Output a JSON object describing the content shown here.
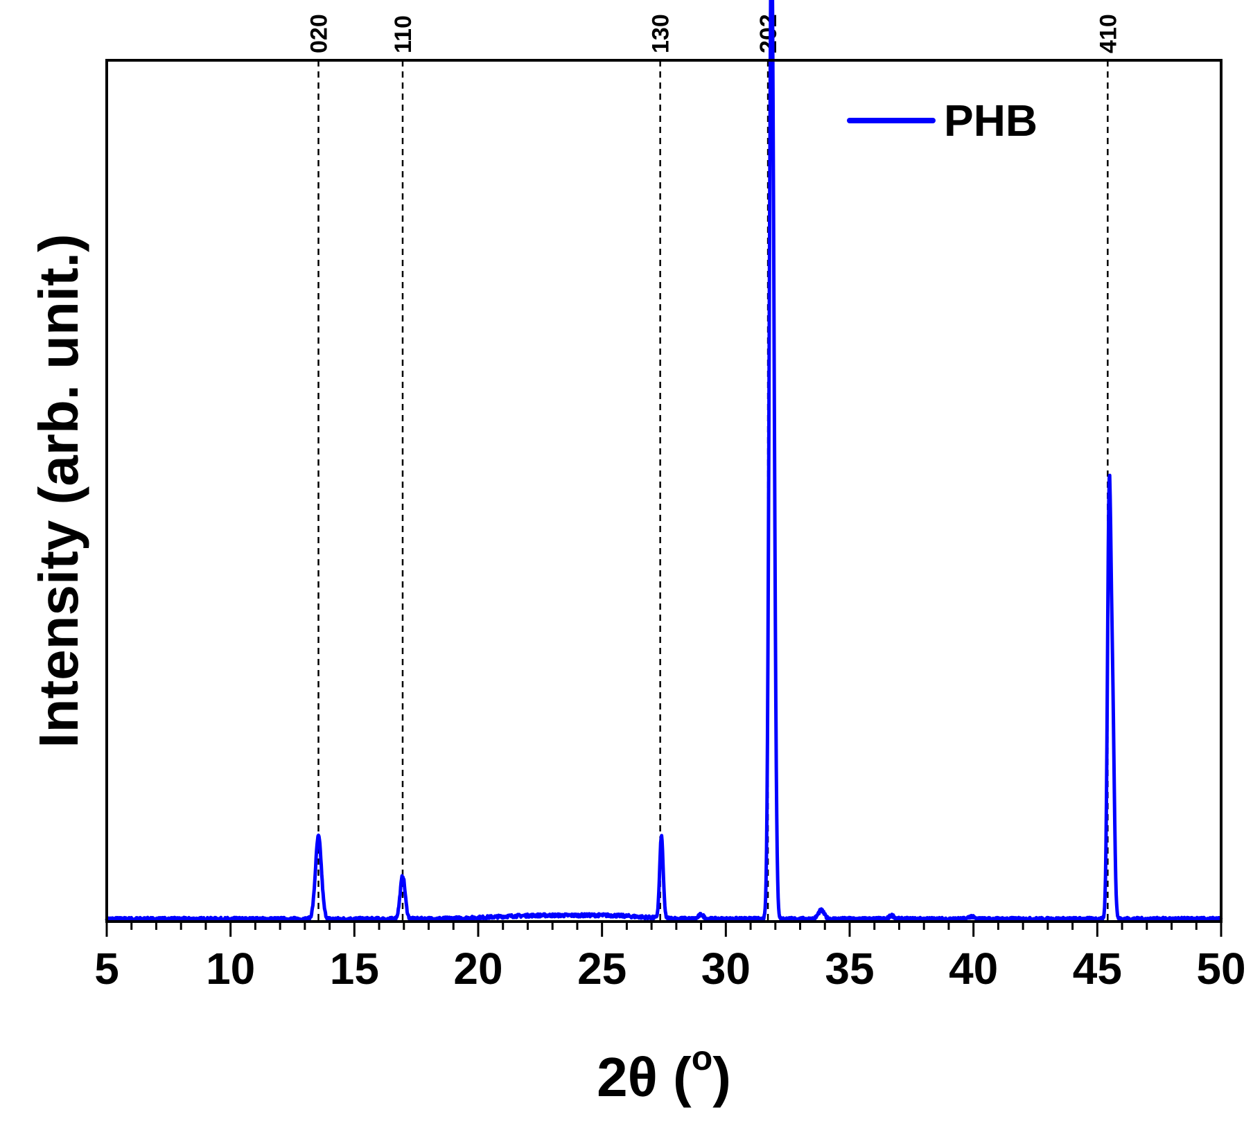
{
  "chart_data": {
    "type": "line",
    "xlabel_main": "2θ (",
    "xlabel_sup": "o",
    "xlabel_close": ")",
    "ylabel": "Intensity  (arb. unit.)",
    "xlim": [
      5,
      50
    ],
    "ylim": [
      0,
      100
    ],
    "x_ticks": [
      5,
      10,
      15,
      20,
      25,
      30,
      35,
      40,
      45,
      50
    ],
    "x_minor_step": 1,
    "y_ticks_shown": false,
    "grid": false,
    "legend": {
      "placement": "top-right",
      "entries": [
        "PHB"
      ]
    },
    "series": [
      {
        "name": "PHB",
        "color": "#0000ff",
        "baseline": 0.3,
        "peaks": [
          {
            "x": 13.55,
            "height": 9.6,
            "width": 0.12
          },
          {
            "x": 16.95,
            "height": 5.0,
            "width": 0.1
          },
          {
            "x": 27.4,
            "height": 9.5,
            "width": 0.07
          },
          {
            "x": 29.0,
            "height": 0.5,
            "width": 0.1
          },
          {
            "x": 31.82,
            "height": 91.0,
            "width": 0.08
          },
          {
            "x": 31.92,
            "height": 45.0,
            "width": 0.08
          },
          {
            "x": 33.85,
            "height": 1.0,
            "width": 0.12
          },
          {
            "x": 36.7,
            "height": 0.4,
            "width": 0.1
          },
          {
            "x": 39.9,
            "height": 0.3,
            "width": 0.1
          },
          {
            "x": 45.48,
            "height": 48.0,
            "width": 0.07
          },
          {
            "x": 45.62,
            "height": 23.0,
            "width": 0.07
          }
        ],
        "broad_humps": [
          {
            "x": 22.5,
            "height": 0.4,
            "width": 1.8
          },
          {
            "x": 25.5,
            "height": 0.3,
            "width": 1.2
          }
        ]
      }
    ],
    "reference_lines": [
      {
        "x": 13.55,
        "label": "020"
      },
      {
        "x": 16.95,
        "label": "110"
      },
      {
        "x": 27.35,
        "label": "130"
      },
      {
        "x": 31.7,
        "label": "202"
      },
      {
        "x": 45.42,
        "label": "410"
      }
    ]
  }
}
